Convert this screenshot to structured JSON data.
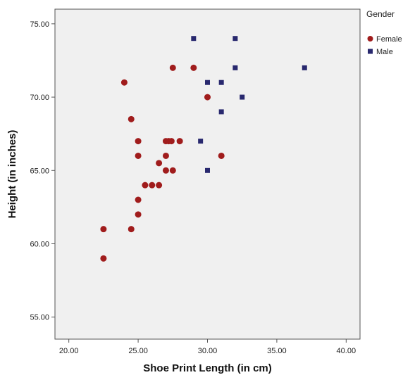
{
  "chart_data": {
    "type": "scatter",
    "title": "",
    "xlabel": "Shoe Print Length (in cm)",
    "ylabel": "Height (in inches)",
    "xlim": [
      19,
      41
    ],
    "ylim": [
      53.5,
      76
    ],
    "x_ticks": [
      20,
      25,
      30,
      35,
      40
    ],
    "x_tick_labels": [
      "20.00",
      "25.00",
      "30.00",
      "35.00",
      "40.00"
    ],
    "y_ticks": [
      55,
      60,
      65,
      70,
      75
    ],
    "y_tick_labels": [
      "55.00",
      "60.00",
      "65.00",
      "70.00",
      "75.00"
    ],
    "grid": false,
    "legend": {
      "title": "Gender",
      "placement": "right-top"
    },
    "background_color": "#f0f0f0",
    "series": [
      {
        "name": "Female",
        "marker": "circle",
        "color": "#a01c1c",
        "points": [
          [
            22.5,
            59
          ],
          [
            22.5,
            61
          ],
          [
            24.5,
            61
          ],
          [
            25,
            62
          ],
          [
            25,
            63
          ],
          [
            25.5,
            64
          ],
          [
            26,
            64
          ],
          [
            26.5,
            64
          ],
          [
            26.5,
            65.5
          ],
          [
            27,
            65
          ],
          [
            27.5,
            65
          ],
          [
            27,
            66
          ],
          [
            25,
            66
          ],
          [
            25,
            67
          ],
          [
            27,
            67
          ],
          [
            27.2,
            67
          ],
          [
            27.4,
            67
          ],
          [
            28,
            67
          ],
          [
            24.5,
            68.5
          ],
          [
            24,
            71
          ],
          [
            27.5,
            72
          ],
          [
            29,
            72
          ],
          [
            30,
            70
          ],
          [
            31,
            66
          ]
        ]
      },
      {
        "name": "Male",
        "marker": "square",
        "color": "#28286e",
        "points": [
          [
            29,
            74
          ],
          [
            32,
            74
          ],
          [
            32,
            72
          ],
          [
            37,
            72
          ],
          [
            30,
            71
          ],
          [
            31,
            71
          ],
          [
            32.5,
            70
          ],
          [
            31,
            69
          ],
          [
            29.5,
            67
          ],
          [
            30,
            65
          ]
        ]
      }
    ]
  }
}
